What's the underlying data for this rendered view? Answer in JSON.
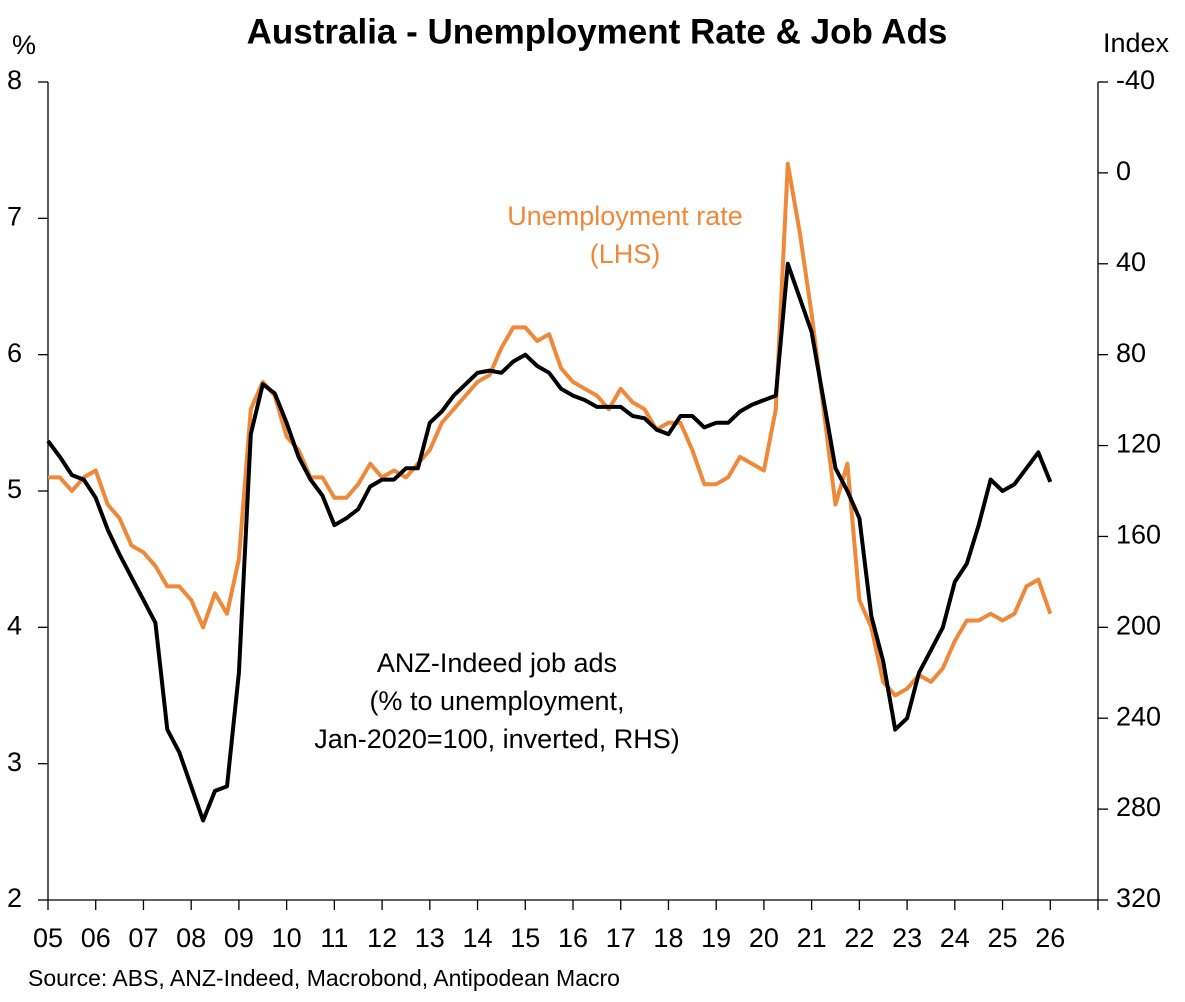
{
  "chart_data": {
    "type": "line",
    "title": "Australia - Unemployment Rate & Job Ads",
    "ylabel": "%",
    "y2label": "Index",
    "source": "Source: ABS, ANZ-Indeed, Macrobond, Antipodean Macro",
    "annotations": [
      "Unemployment rate",
      "(LHS)",
      "ANZ-Indeed job ads",
      "(% to unemployment,",
      "Jan-2020=100, inverted, RHS)"
    ],
    "x": [
      2005,
      2005.25,
      2005.5,
      2005.75,
      2006,
      2006.25,
      2006.5,
      2006.75,
      2007,
      2007.25,
      2007.5,
      2007.75,
      2008,
      2008.25,
      2008.5,
      2008.75,
      2009,
      2009.25,
      2009.5,
      2009.75,
      2010,
      2010.25,
      2010.5,
      2010.75,
      2011,
      2011.25,
      2011.5,
      2011.75,
      2012,
      2012.25,
      2012.5,
      2012.75,
      2013,
      2013.25,
      2013.5,
      2013.75,
      2014,
      2014.25,
      2014.5,
      2014.75,
      2015,
      2015.25,
      2015.5,
      2015.75,
      2016,
      2016.25,
      2016.5,
      2016.75,
      2017,
      2017.25,
      2017.5,
      2017.75,
      2018,
      2018.25,
      2018.5,
      2018.75,
      2019,
      2019.25,
      2019.5,
      2019.75,
      2020,
      2020.25,
      2020.5,
      2020.75,
      2021,
      2021.25,
      2021.5,
      2021.75,
      2022,
      2022.25,
      2022.5,
      2022.75,
      2023,
      2023.25,
      2023.5,
      2023.75,
      2024,
      2024.25,
      2024.5,
      2024.75,
      2025,
      2025.25,
      2025.5,
      2025.75,
      2026
    ],
    "series": [
      {
        "color": "#f0883a",
        "axis": "y",
        "values": [
          5.1,
          5.1,
          5.0,
          5.1,
          5.15,
          4.9,
          4.8,
          4.6,
          4.55,
          4.45,
          4.3,
          4.3,
          4.2,
          4.0,
          4.25,
          4.1,
          4.5,
          5.6,
          5.8,
          5.7,
          5.4,
          5.3,
          5.1,
          5.1,
          4.95,
          4.95,
          5.05,
          5.2,
          5.1,
          5.15,
          5.1,
          5.2,
          5.3,
          5.5,
          5.6,
          5.7,
          5.8,
          5.85,
          6.05,
          6.2,
          6.2,
          6.1,
          6.15,
          5.9,
          5.8,
          5.75,
          5.7,
          5.6,
          5.75,
          5.65,
          5.6,
          5.45,
          5.5,
          5.5,
          5.3,
          5.05,
          5.05,
          5.1,
          5.25,
          5.2,
          5.15,
          5.6,
          7.4,
          6.9,
          6.3,
          5.6,
          4.9,
          5.2,
          4.2,
          4.0,
          3.6,
          3.5,
          3.55,
          3.65,
          3.6,
          3.7,
          3.9,
          4.05,
          4.05,
          4.1,
          4.05,
          4.1,
          4.3,
          4.35,
          4.1
        ]
      },
      {
        "color": "#000000",
        "axis": "y2",
        "values": [
          118,
          125,
          133,
          135,
          143,
          157,
          168,
          178,
          188,
          198,
          245,
          255,
          270,
          285,
          272,
          270,
          220,
          115,
          93,
          97,
          110,
          125,
          135,
          142,
          155,
          152,
          148,
          138,
          135,
          135,
          130,
          130,
          110,
          105,
          98,
          93,
          88,
          87,
          88,
          83,
          80,
          85,
          88,
          95,
          98,
          100,
          103,
          103,
          103,
          107,
          108,
          113,
          115,
          107,
          107,
          112,
          110,
          110,
          105,
          102,
          100,
          98,
          40,
          55,
          70,
          100,
          130,
          140,
          152,
          195,
          215,
          245,
          240,
          220,
          210,
          200,
          180,
          172,
          155,
          135,
          140,
          137,
          130,
          123,
          136
        ]
      }
    ],
    "xlim": [
      2005,
      2027
    ],
    "xticks": [
      {
        "value": 2005,
        "label": "05"
      },
      {
        "value": 2006,
        "label": "06"
      },
      {
        "value": 2007,
        "label": "07"
      },
      {
        "value": 2008,
        "label": "08"
      },
      {
        "value": 2009,
        "label": "09"
      },
      {
        "value": 2010,
        "label": "10"
      },
      {
        "value": 2011,
        "label": "11"
      },
      {
        "value": 2012,
        "label": "12"
      },
      {
        "value": 2013,
        "label": "13"
      },
      {
        "value": 2014,
        "label": "14"
      },
      {
        "value": 2015,
        "label": "15"
      },
      {
        "value": 2016,
        "label": "16"
      },
      {
        "value": 2017,
        "label": "17"
      },
      {
        "value": 2018,
        "label": "18"
      },
      {
        "value": 2019,
        "label": "19"
      },
      {
        "value": 2020,
        "label": "20"
      },
      {
        "value": 2021,
        "label": "21"
      },
      {
        "value": 2022,
        "label": "22"
      },
      {
        "value": 2023,
        "label": "23"
      },
      {
        "value": 2024,
        "label": "24"
      },
      {
        "value": 2025,
        "label": "25"
      },
      {
        "value": 2026,
        "label": "26"
      }
    ],
    "ylim": [
      2,
      8
    ],
    "yticks": [
      2,
      3,
      4,
      5,
      6,
      7,
      8
    ],
    "y2lim": [
      -40,
      320
    ],
    "y2ticks": [
      -40,
      0,
      40,
      80,
      120,
      160,
      200,
      240,
      280,
      320
    ],
    "y2_inverted": true,
    "grid": false
  }
}
